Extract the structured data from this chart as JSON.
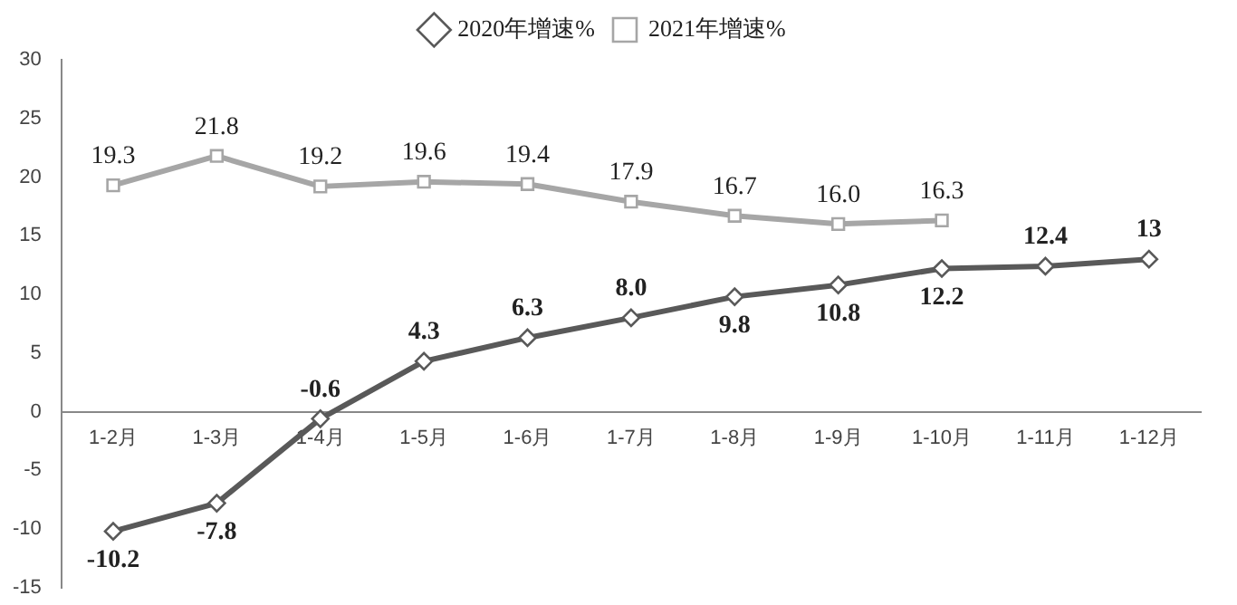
{
  "chart_data": {
    "type": "line",
    "categories": [
      "1-2月",
      "1-3月",
      "1-4月",
      "1-5月",
      "1-6月",
      "1-7月",
      "1-8月",
      "1-9月",
      "1-10月",
      "1-11月",
      "1-12月"
    ],
    "series": [
      {
        "name": "2020年增速%",
        "color": "#595959",
        "marker": "diamond",
        "values": [
          -10.2,
          -7.8,
          -0.6,
          4.3,
          6.3,
          8.0,
          9.8,
          10.8,
          12.2,
          12.4,
          13
        ],
        "value_labels": [
          "-10.2",
          "-7.8",
          "-0.6",
          "4.3",
          "6.3",
          "8.0",
          "9.8",
          "10.8",
          "12.2",
          "12.4",
          "13"
        ]
      },
      {
        "name": "2021年增速%",
        "color": "#a6a6a6",
        "marker": "square",
        "values": [
          19.3,
          21.8,
          19.2,
          19.6,
          19.4,
          17.9,
          16.7,
          16.0,
          16.3,
          null,
          null
        ],
        "value_labels": [
          "19.3",
          "21.8",
          "19.2",
          "19.6",
          "19.4",
          "17.9",
          "16.7",
          "16.0",
          "16.3",
          null,
          null
        ]
      }
    ],
    "ylim": [
      -15,
      30
    ],
    "yticks": [
      -15,
      -10,
      -5,
      0,
      5,
      10,
      15,
      20,
      25,
      30
    ],
    "grid": false,
    "legend": "top",
    "line_style": "solid"
  }
}
